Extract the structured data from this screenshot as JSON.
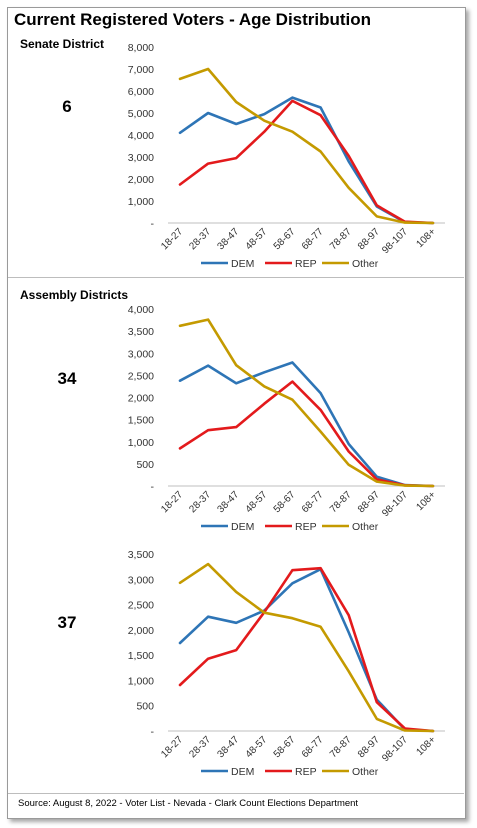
{
  "title": "Current Registered Voters - Age Distribution",
  "sections": {
    "senate": "Senate District",
    "assembly": "Assembly Districts"
  },
  "source": "Source: August 8, 2022 - Voter List - Nevada - Clark Count Elections Department",
  "colors": {
    "DEM": "#2e75b6",
    "REP": "#e31a1c",
    "Other": "#c49a00",
    "axis": "#bfbfbf"
  },
  "chart_data": [
    {
      "type": "line",
      "district": "6",
      "categories": [
        "18-27",
        "28-37",
        "38-47",
        "48-57",
        "58-67",
        "68-77",
        "78-87",
        "88-97",
        "98-107",
        "108+"
      ],
      "ylim": [
        0,
        8000
      ],
      "yticks": [
        "-",
        "1,000",
        "2,000",
        "3,000",
        "4,000",
        "5,000",
        "6,000",
        "7,000",
        "8,000"
      ],
      "legend": "bottom",
      "series": [
        {
          "name": "DEM",
          "values": [
            4100,
            5000,
            4500,
            4950,
            5700,
            5250,
            2800,
            750,
            40,
            0
          ]
        },
        {
          "name": "REP",
          "values": [
            1750,
            2700,
            2950,
            4150,
            5550,
            4900,
            3050,
            800,
            60,
            0
          ]
        },
        {
          "name": "Other",
          "values": [
            6550,
            7000,
            5500,
            4650,
            4150,
            3250,
            1600,
            300,
            20,
            0
          ]
        }
      ]
    },
    {
      "type": "line",
      "district": "34",
      "categories": [
        "18-27",
        "28-37",
        "38-47",
        "48-57",
        "58-67",
        "68-77",
        "78-87",
        "88-97",
        "98-107",
        "108+"
      ],
      "ylim": [
        0,
        4000
      ],
      "yticks": [
        "-",
        "500",
        "1,000",
        "1,500",
        "2,000",
        "2,500",
        "3,000",
        "3,500",
        "4,000"
      ],
      "legend": "bottom",
      "series": [
        {
          "name": "DEM",
          "values": [
            2380,
            2720,
            2320,
            2570,
            2790,
            2100,
            950,
            210,
            20,
            0
          ]
        },
        {
          "name": "REP",
          "values": [
            850,
            1260,
            1330,
            1860,
            2360,
            1720,
            780,
            150,
            15,
            0
          ]
        },
        {
          "name": "Other",
          "values": [
            3620,
            3760,
            2730,
            2250,
            1950,
            1230,
            480,
            100,
            10,
            0
          ]
        }
      ]
    },
    {
      "type": "line",
      "district": "37",
      "categories": [
        "18-27",
        "28-37",
        "38-47",
        "48-57",
        "58-67",
        "68-77",
        "78-87",
        "88-97",
        "98-107",
        "108+"
      ],
      "ylim": [
        0,
        3500
      ],
      "yticks": [
        "-",
        "500",
        "1,000",
        "1,500",
        "2,000",
        "2,500",
        "3,000",
        "3,500"
      ],
      "legend": "bottom",
      "series": [
        {
          "name": "DEM",
          "values": [
            1740,
            2260,
            2140,
            2380,
            2920,
            3200,
            1950,
            620,
            30,
            0
          ]
        },
        {
          "name": "REP",
          "values": [
            910,
            1430,
            1600,
            2350,
            3180,
            3220,
            2290,
            570,
            50,
            0
          ]
        },
        {
          "name": "Other",
          "values": [
            2930,
            3300,
            2750,
            2340,
            2230,
            2060,
            1180,
            240,
            10,
            0
          ]
        }
      ]
    }
  ]
}
